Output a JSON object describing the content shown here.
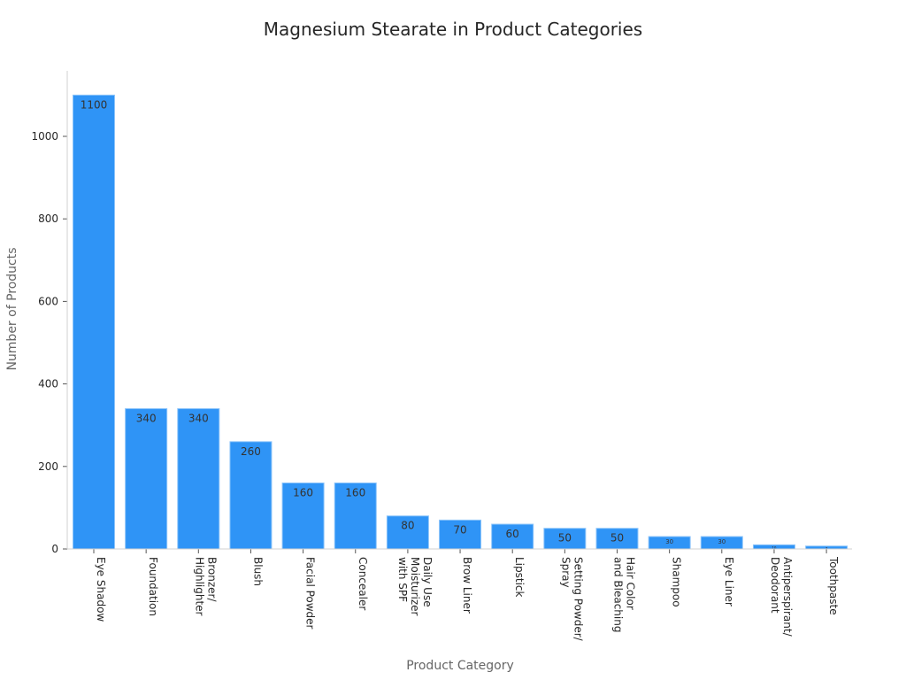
{
  "chart_data": {
    "type": "bar",
    "title": "Magnesium Stearate in Product Categories",
    "xlabel": "Product Category",
    "ylabel": "Number of Products",
    "ylim": [
      0,
      1160
    ],
    "yticks": [
      0,
      200,
      400,
      600,
      800,
      1000
    ],
    "grid": false,
    "bar_color": "#2f94f6",
    "categories": [
      "Eye Shadow",
      "Foundation",
      "Bronzer/\nHighlighter",
      "Blush",
      "Facial Powder",
      "Concealer",
      "Daily Use\nMoisturizer\nwith SPF",
      "Brow Liner",
      "Lipstick",
      "Setting Powder/\nSpray",
      "Hair Color\nand Bleaching",
      "Shampoo",
      "Eye Liner",
      "Antiperspirant/\nDeodorant",
      "Toothpaste"
    ],
    "values": [
      1100,
      340,
      340,
      260,
      160,
      160,
      80,
      70,
      60,
      50,
      50,
      30,
      30,
      10,
      7
    ]
  }
}
